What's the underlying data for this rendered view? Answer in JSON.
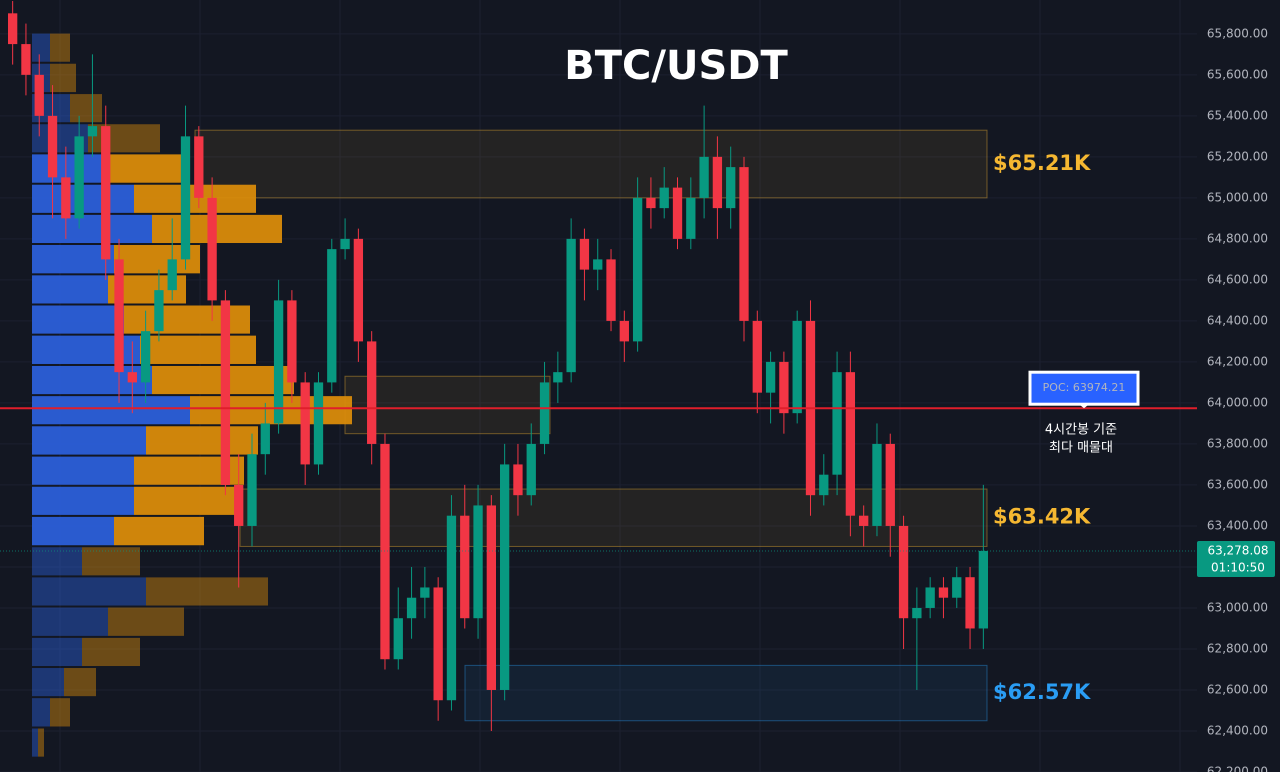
{
  "chart_data": {
    "type": "candlestick",
    "title": "BTC/USDT",
    "ylim": [
      62200,
      65965
    ],
    "yticks": [
      {
        "value": 62200,
        "label": "62,200.00"
      },
      {
        "value": 62400,
        "label": "62,400.00"
      },
      {
        "value": 62600,
        "label": "62,600.00"
      },
      {
        "value": 62800,
        "label": "62,800.00"
      },
      {
        "value": 63000,
        "label": "63,000.00"
      },
      {
        "value": 63200,
        "label": "63,200.00"
      },
      {
        "value": 63400,
        "label": "63,400.00"
      },
      {
        "value": 63600,
        "label": "63,600.00"
      },
      {
        "value": 63800,
        "label": "63,800.00"
      },
      {
        "value": 64000,
        "label": "64,000.00"
      },
      {
        "value": 64200,
        "label": "64,200.00"
      },
      {
        "value": 64400,
        "label": "64,400.00"
      },
      {
        "value": 64600,
        "label": "64,600.00"
      },
      {
        "value": 64800,
        "label": "64,800.00"
      },
      {
        "value": 65000,
        "label": "65,000.00"
      },
      {
        "value": 65200,
        "label": "65,200.00"
      },
      {
        "value": 65400,
        "label": "65,400.00"
      },
      {
        "value": 65600,
        "label": "65,600.00"
      },
      {
        "value": 65800,
        "label": "65,800.00"
      }
    ],
    "up_color": "#089981",
    "down_color": "#f23645",
    "open": [
      65900,
      65750,
      65600,
      65400,
      65100,
      64900,
      65300,
      65350,
      64700,
      64150,
      64100,
      64350,
      64550,
      64700,
      65300,
      65000,
      64500,
      63600,
      63400,
      63750,
      63900,
      64500,
      64100,
      63700,
      64100,
      64750,
      64800,
      64300,
      63800,
      62750,
      62950,
      63050,
      63100,
      62550,
      63450,
      62950,
      63500,
      62600,
      63700,
      63550,
      63800,
      64100,
      64150,
      64800,
      64650,
      64700,
      64400,
      64300,
      65000,
      64950,
      65050,
      64800,
      65000,
      65200,
      64950,
      65150,
      64400,
      64050,
      64200,
      63950,
      64400,
      63550,
      63650,
      64150,
      63450,
      63400,
      63800,
      63400,
      62950,
      63000,
      63100,
      63050,
      63150,
      62900
    ],
    "high": [
      65960,
      65850,
      65700,
      65550,
      65250,
      65400,
      65700,
      65450,
      64800,
      64300,
      64450,
      64650,
      64900,
      65450,
      65350,
      65100,
      64550,
      63750,
      63850,
      64000,
      64600,
      64550,
      64150,
      64150,
      64800,
      64900,
      64850,
      64350,
      63850,
      63100,
      63200,
      63200,
      63150,
      63550,
      63600,
      63600,
      63550,
      63800,
      63800,
      63900,
      64200,
      64250,
      64900,
      64850,
      64800,
      64750,
      64450,
      65100,
      65100,
      65150,
      65100,
      65100,
      65450,
      65300,
      65250,
      65200,
      64450,
      64250,
      64250,
      64450,
      64500,
      63750,
      64250,
      64250,
      63500,
      63900,
      63850,
      63450,
      63100,
      63150,
      63150,
      63200,
      63200,
      63600
    ],
    "low": [
      65650,
      65500,
      65300,
      64900,
      64800,
      64850,
      65200,
      64600,
      64000,
      63950,
      64000,
      64300,
      64500,
      64650,
      64950,
      64400,
      63550,
      63100,
      63300,
      63650,
      63850,
      64000,
      63600,
      63650,
      64050,
      64700,
      64200,
      63700,
      62700,
      62700,
      62850,
      62950,
      62450,
      62500,
      62900,
      62850,
      62400,
      62550,
      63450,
      63500,
      63750,
      64000,
      64100,
      64500,
      64550,
      64350,
      64200,
      64250,
      64850,
      64900,
      64750,
      64750,
      64900,
      64800,
      64850,
      64300,
      63950,
      63900,
      63850,
      63900,
      63450,
      63500,
      63550,
      63350,
      63300,
      63350,
      63250,
      62800,
      62600,
      62950,
      62950,
      63000,
      62800,
      62800
    ],
    "close": [
      65750,
      65600,
      65400,
      65100,
      64900,
      65300,
      65350,
      64700,
      64150,
      64100,
      64350,
      64550,
      64700,
      65300,
      65000,
      64500,
      63600,
      63400,
      63750,
      63900,
      64500,
      64100,
      63700,
      64100,
      64750,
      64800,
      64300,
      63800,
      62750,
      62950,
      63050,
      63100,
      62550,
      63450,
      62950,
      63500,
      62600,
      63700,
      63550,
      63800,
      64100,
      64150,
      64800,
      64650,
      64700,
      64400,
      64300,
      65000,
      64950,
      65050,
      64800,
      65000,
      65200,
      64950,
      65150,
      64400,
      64050,
      64200,
      63950,
      64400,
      63550,
      63650,
      64150,
      63450,
      63400,
      63800,
      63400,
      62950,
      63000,
      63100,
      63050,
      63150,
      62900,
      63278.08
    ],
    "volume_profile": {
      "bins": [
        62270,
        62417,
        62565,
        62712,
        62859,
        63007,
        63154,
        63301,
        63449,
        63596,
        63743,
        63891,
        64038,
        64185,
        64333,
        64480,
        64627,
        64775,
        64922,
        65069,
        65217,
        65364,
        65511,
        65659,
        65806
      ],
      "buy": [
        6,
        18,
        32,
        50,
        76,
        114,
        50,
        82,
        102,
        102,
        114,
        158,
        120,
        108,
        92,
        76,
        82,
        120,
        102,
        70,
        56,
        38,
        18,
        18
      ],
      "sell": [
        6,
        20,
        32,
        58,
        76,
        122,
        58,
        90,
        108,
        110,
        112,
        162,
        142,
        116,
        126,
        78,
        86,
        130,
        122,
        84,
        72,
        32,
        26,
        20
      ],
      "buy_color": "#2b5fd9",
      "sell_color": "#d98b0b",
      "value_area": [
        63301,
        65217
      ]
    },
    "zones": [
      {
        "low": 65000,
        "high": 65330,
        "label": "$65.21K",
        "color": "#f5b731"
      },
      {
        "low": 63850,
        "high": 64130,
        "color": "#f5b731"
      },
      {
        "low": 63300,
        "high": 63580,
        "label": "$63.42K",
        "color": "#f5b731"
      },
      {
        "low": 62450,
        "high": 62720,
        "label": "$62.57K",
        "color": "#2a9df4"
      }
    ],
    "poc": {
      "value": 63974.21,
      "label": "POC: 63974.21",
      "color": "#e01e2b"
    },
    "annotation": [
      "4시간봉 기준",
      "최다 매물대"
    ],
    "last_price": {
      "value": 63278.08,
      "label": "63,278.08"
    },
    "countdown": "01:10:50"
  }
}
